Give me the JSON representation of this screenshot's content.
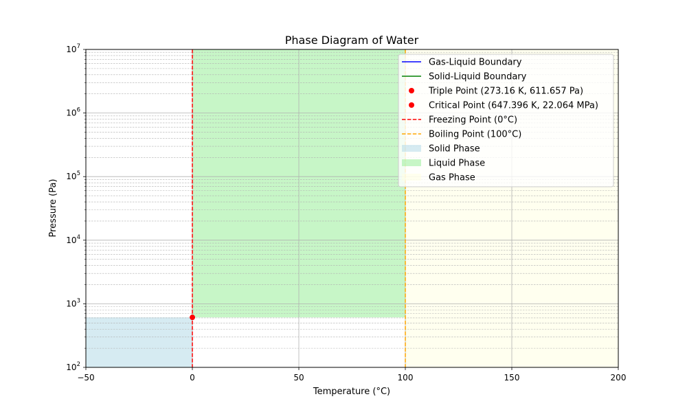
{
  "chart_data": {
    "type": "line",
    "title": "Phase Diagram of Water",
    "xlabel": "Temperature (°C)",
    "ylabel": "Pressure (Pa)",
    "xlim": [
      -50,
      200
    ],
    "ylim": [
      100,
      10000000
    ],
    "yscale": "log",
    "grid": true,
    "legend_position": "top-right",
    "x_ticks": [
      {
        "value": -50,
        "label": "−50"
      },
      {
        "value": 0,
        "label": "0"
      },
      {
        "value": 50,
        "label": "50"
      },
      {
        "value": 100,
        "label": "100"
      },
      {
        "value": 150,
        "label": "150"
      },
      {
        "value": 200,
        "label": "200"
      }
    ],
    "y_ticks": [
      {
        "value": 100,
        "base": "10",
        "exp": "2"
      },
      {
        "value": 1000,
        "base": "10",
        "exp": "3"
      },
      {
        "value": 10000,
        "base": "10",
        "exp": "4"
      },
      {
        "value": 100000,
        "base": "10",
        "exp": "5"
      },
      {
        "value": 1000000,
        "base": "10",
        "exp": "6"
      },
      {
        "value": 10000000,
        "base": "10",
        "exp": "7"
      }
    ],
    "regions": [
      {
        "name": "Solid Phase",
        "color": "#add8e6",
        "opacity": 0.5,
        "x": [
          -50,
          0
        ],
        "y": [
          100,
          611.657
        ]
      },
      {
        "name": "Liquid Phase",
        "color": "#90ee90",
        "opacity": 0.5,
        "x": [
          0,
          100
        ],
        "y": [
          611.657,
          10000000
        ]
      },
      {
        "name": "Gas Phase",
        "color": "#ffffe0",
        "opacity": 0.5,
        "x": [
          100,
          200
        ],
        "y": [
          100,
          10000000
        ]
      }
    ],
    "vertical_lines": [
      {
        "name": "Freezing Point (0°C)",
        "x": 0,
        "color": "#ff0000",
        "style": "dashed"
      },
      {
        "name": "Boiling Point (100°C)",
        "x": 100,
        "color": "#ffa500",
        "style": "dashed"
      }
    ],
    "points": [
      {
        "name": "Triple Point (273.16 K, 611.657 Pa)",
        "x": 0.01,
        "y": 611.657,
        "color": "#ff0000"
      },
      {
        "name": "Critical Point (647.396 K, 22.064 MPa)",
        "x": 374.25,
        "y": 22064000,
        "color": "#ff0000"
      }
    ],
    "series": [
      {
        "name": "Gas-Liquid Boundary",
        "color": "#0000ff",
        "values": []
      },
      {
        "name": "Solid-Liquid Boundary",
        "color": "#008000",
        "values": []
      }
    ],
    "legend": [
      {
        "label": "Gas-Liquid Boundary",
        "kind": "line",
        "color": "#0000ff"
      },
      {
        "label": "Solid-Liquid Boundary",
        "kind": "line",
        "color": "#008000"
      },
      {
        "label": "Triple Point (273.16 K, 611.657 Pa)",
        "kind": "marker",
        "color": "#ff0000"
      },
      {
        "label": "Critical Point (647.396 K, 22.064 MPa)",
        "kind": "marker",
        "color": "#ff0000"
      },
      {
        "label": "Freezing Point (0°C)",
        "kind": "dashed",
        "color": "#ff0000"
      },
      {
        "label": "Boiling Point (100°C)",
        "kind": "dashed",
        "color": "#ffa500"
      },
      {
        "label": "Solid Phase",
        "kind": "patch",
        "color": "#add8e6"
      },
      {
        "label": "Liquid Phase",
        "kind": "patch",
        "color": "#90ee90"
      },
      {
        "label": "Gas Phase",
        "kind": "patch",
        "color": "#ffffe0"
      }
    ]
  }
}
